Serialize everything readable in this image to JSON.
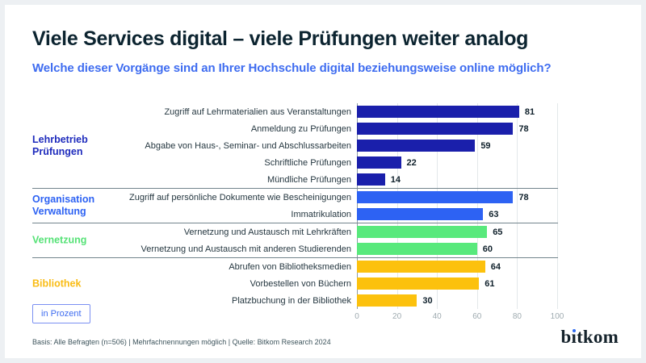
{
  "chart_data": {
    "type": "bar",
    "orientation": "horizontal",
    "title": "Viele Services digital – viele Prüfungen weiter analog",
    "subtitle": "Welche dieser Vorgänge sind an Ihrer Hochschule digital beziehungsweise online möglich?",
    "unit_note": "in Prozent",
    "xlim": [
      0,
      100
    ],
    "x_ticks": [
      0,
      20,
      40,
      60,
      80,
      100
    ],
    "grid": true,
    "value_labels": true,
    "legend_position": "none",
    "groups": [
      {
        "name": "Lehrbetrieb Prüfungen",
        "label_lines": [
          "Lehrbetrieb",
          "Prüfungen"
        ],
        "color": "#1a1fab",
        "label_color": "#1f2cbd",
        "items": [
          {
            "label": "Zugriff auf Lehrmaterialien aus Veranstaltungen",
            "value": 81
          },
          {
            "label": "Anmeldung zu Prüfungen",
            "value": 78
          },
          {
            "label": "Abgabe von Haus-, Seminar- und Abschlussarbeiten",
            "value": 59
          },
          {
            "label": "Schriftliche Prüfungen",
            "value": 22
          },
          {
            "label": "Mündliche Prüfungen",
            "value": 14
          }
        ]
      },
      {
        "name": "Organisation Verwaltung",
        "label_lines": [
          "Organisation",
          "Verwaltung"
        ],
        "color": "#2d62f3",
        "label_color": "#2d62f3",
        "items": [
          {
            "label": "Zugriff auf persönliche Dokumente wie Bescheinigungen",
            "value": 78
          },
          {
            "label": "Immatrikulation",
            "value": 63
          }
        ]
      },
      {
        "name": "Vernetzung",
        "label_lines": [
          "Vernetzung"
        ],
        "color": "#58e97c",
        "label_color": "#55e276",
        "items": [
          {
            "label": "Vernetzung und Austausch mit Lehrkräften",
            "value": 65
          },
          {
            "label": "Vernetzung und Austausch mit anderen Studierenden",
            "value": 60
          }
        ]
      },
      {
        "name": "Bibliothek",
        "label_lines": [
          "Bibliothek"
        ],
        "color": "#fcc10d",
        "label_color": "#f9bc15",
        "items": [
          {
            "label": "Abrufen von Bibliotheksmedien",
            "value": 64
          },
          {
            "label": "Vorbestellen von Büchern",
            "value": 61
          },
          {
            "label": "Platzbuchung in der Bibliothek",
            "value": 30
          }
        ]
      }
    ]
  },
  "footer": {
    "source": "Basis: Alle Befragten (n=506) | Mehrfachnennungen möglich | Quelle: Bitkom Research 2024"
  },
  "brand": {
    "logo_b": "b",
    "logo_i": "ı",
    "logo_rest": "tkom"
  }
}
